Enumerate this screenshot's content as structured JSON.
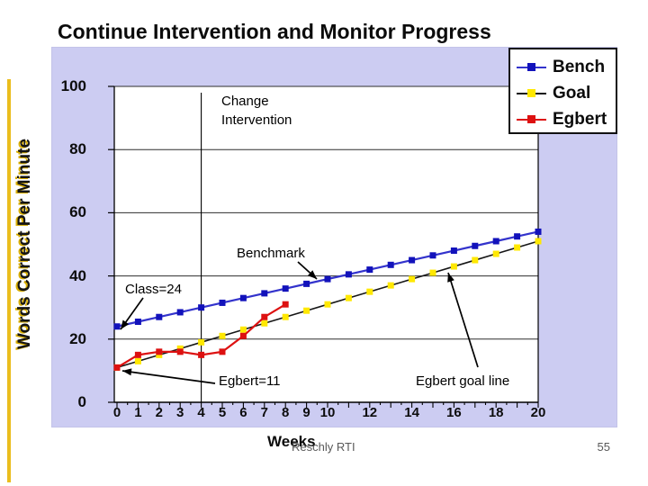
{
  "page": {
    "title": "Continue Intervention and Monitor Progress",
    "footer_left": "Reschly RTI",
    "page_number": "55"
  },
  "colors": {
    "chart_background": "#ccccf2",
    "plot_background": "#ffffff",
    "accent_bar": "#eabd1d",
    "grid_line": "#2e2e2e",
    "axis_line": "#000000",
    "annotation_text": "#000000",
    "tick_label": "#0c0c0c",
    "footer_text": "#595959",
    "legend_border": "#111111"
  },
  "chart_data": {
    "type": "line",
    "title": "",
    "xlabel": "Weeks",
    "ylabel": "Words Correct Per Minute",
    "xlim": [
      0,
      20
    ],
    "ylim": [
      0,
      100
    ],
    "x_tick_labels": [
      0,
      1,
      2,
      3,
      4,
      5,
      6,
      7,
      8,
      9,
      10,
      12,
      14,
      16,
      18,
      20
    ],
    "y_tick_labels": [
      0,
      20,
      40,
      60,
      80,
      100
    ],
    "grid": "horizontal-only",
    "legend_position": "top-right-overlapping-plot",
    "series": [
      {
        "name": "Bench",
        "line_color": "#3333cc",
        "marker_color": "#1212bb",
        "x": [
          0,
          1,
          2,
          3,
          4,
          5,
          6,
          7,
          8,
          9,
          10,
          11,
          12,
          13,
          14,
          15,
          16,
          17,
          18,
          19,
          20
        ],
        "values": [
          24,
          25.5,
          27,
          28.5,
          30,
          31.5,
          33,
          34.5,
          36,
          37.5,
          39,
          40.5,
          42,
          43.5,
          45,
          46.5,
          48,
          49.5,
          51,
          52.5,
          54
        ]
      },
      {
        "name": "Goal",
        "line_color": "#161616",
        "marker_color": "#ffe800",
        "x": [
          0,
          1,
          2,
          3,
          4,
          5,
          6,
          7,
          8,
          9,
          10,
          11,
          12,
          13,
          14,
          15,
          16,
          17,
          18,
          19,
          20
        ],
        "values": [
          11,
          13,
          15,
          17,
          19,
          21,
          23,
          25,
          27,
          29,
          31,
          33,
          35,
          37,
          39,
          41,
          43,
          45,
          47,
          49,
          51
        ]
      },
      {
        "name": "Egbert",
        "line_color": "#dd1111",
        "marker_color": "#dd1111",
        "x": [
          0,
          1,
          2,
          3,
          4,
          5,
          6,
          7,
          8
        ],
        "values": [
          11,
          15,
          16,
          16,
          15,
          16,
          21,
          27,
          31
        ]
      }
    ],
    "annotations": [
      {
        "text": "Change Intervention",
        "points_to": "vertical line at week 4"
      },
      {
        "text": "Benchmark",
        "points_to": "Bench line near week 9.5"
      },
      {
        "text": "Class=24",
        "points_to": "Bench starting value at week 0"
      },
      {
        "text": "Egbert=11",
        "points_to": "Egbert starting value at week 0"
      },
      {
        "text": "Egbert goal line",
        "points_to": "Goal line near week 15.5"
      }
    ],
    "change_intervention_week": 4
  }
}
